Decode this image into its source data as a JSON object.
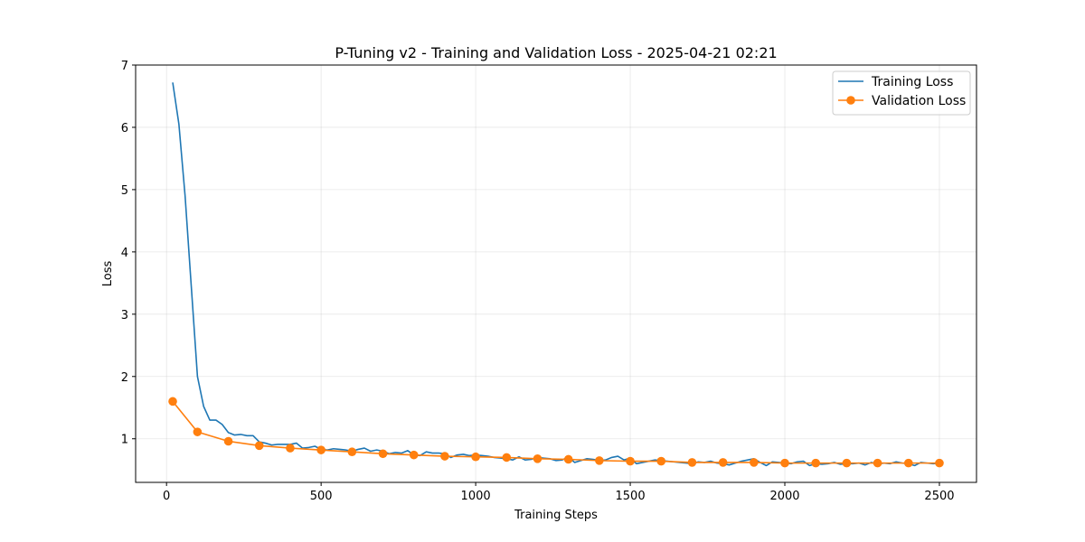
{
  "chart_data": {
    "type": "line",
    "title": "P-Tuning v2 - Training and Validation Loss - 2025-04-21 02:21",
    "xlabel": "Training Steps",
    "ylabel": "Loss",
    "xlim": [
      -100,
      2620
    ],
    "ylim": [
      0.3,
      7.0
    ],
    "x_ticks": [
      0,
      500,
      1000,
      1500,
      2000,
      2500
    ],
    "y_ticks": [
      1,
      2,
      3,
      4,
      5,
      6,
      7
    ],
    "grid": true,
    "legend_position": "top-right",
    "series": [
      {
        "name": "Training Loss",
        "color": "#1f77b4",
        "marker": "none",
        "x": [
          20,
          40,
          60,
          80,
          100,
          120,
          140,
          160,
          180,
          200,
          220,
          240,
          260,
          280,
          300,
          320,
          340,
          360,
          380,
          400,
          420,
          440,
          460,
          480,
          500,
          520,
          540,
          560,
          580,
          600,
          620,
          640,
          660,
          680,
          700,
          720,
          740,
          760,
          780,
          800,
          820,
          840,
          860,
          880,
          900,
          920,
          940,
          960,
          980,
          1000,
          1020,
          1040,
          1060,
          1080,
          1100,
          1120,
          1140,
          1160,
          1180,
          1200,
          1220,
          1240,
          1260,
          1280,
          1300,
          1320,
          1340,
          1360,
          1380,
          1400,
          1420,
          1440,
          1460,
          1480,
          1500,
          1520,
          1540,
          1560,
          1580,
          1600,
          1620,
          1640,
          1660,
          1680,
          1700,
          1720,
          1740,
          1760,
          1780,
          1800,
          1820,
          1840,
          1860,
          1880,
          1900,
          1920,
          1940,
          1960,
          1980,
          2000,
          2020,
          2040,
          2060,
          2080,
          2100,
          2120,
          2140,
          2160,
          2180,
          2200,
          2220,
          2240,
          2260,
          2280,
          2300,
          2320,
          2340,
          2360,
          2380,
          2400,
          2420,
          2440,
          2460,
          2480,
          2500
        ],
        "values": [
          6.72,
          6.05,
          4.9,
          3.45,
          2.0,
          1.52,
          1.3,
          1.3,
          1.23,
          1.1,
          1.06,
          1.07,
          1.05,
          1.05,
          0.95,
          0.93,
          0.9,
          0.91,
          0.91,
          0.91,
          0.93,
          0.85,
          0.86,
          0.88,
          0.83,
          0.82,
          0.84,
          0.83,
          0.82,
          0.8,
          0.83,
          0.85,
          0.8,
          0.82,
          0.8,
          0.76,
          0.78,
          0.77,
          0.81,
          0.74,
          0.73,
          0.79,
          0.77,
          0.77,
          0.76,
          0.7,
          0.74,
          0.75,
          0.73,
          0.74,
          0.73,
          0.72,
          0.7,
          0.69,
          0.68,
          0.66,
          0.71,
          0.66,
          0.67,
          0.7,
          0.69,
          0.68,
          0.65,
          0.66,
          0.71,
          0.62,
          0.65,
          0.68,
          0.67,
          0.65,
          0.66,
          0.7,
          0.72,
          0.66,
          0.69,
          0.6,
          0.62,
          0.64,
          0.66,
          0.65,
          0.64,
          0.63,
          0.62,
          0.61,
          0.6,
          0.63,
          0.62,
          0.64,
          0.61,
          0.6,
          0.58,
          0.61,
          0.64,
          0.66,
          0.68,
          0.62,
          0.57,
          0.63,
          0.62,
          0.61,
          0.6,
          0.63,
          0.64,
          0.57,
          0.6,
          0.59,
          0.6,
          0.62,
          0.59,
          0.6,
          0.6,
          0.61,
          0.58,
          0.62,
          0.59,
          0.61,
          0.6,
          0.63,
          0.61,
          0.6,
          0.57,
          0.62,
          0.61,
          0.6,
          0.61
        ]
      },
      {
        "name": "Validation Loss",
        "color": "#ff7f0e",
        "marker": "circle",
        "x": [
          20,
          100,
          200,
          300,
          400,
          500,
          600,
          700,
          800,
          900,
          1000,
          1100,
          1200,
          1300,
          1400,
          1500,
          1600,
          1700,
          1800,
          1900,
          2000,
          2100,
          2200,
          2300,
          2400,
          2500
        ],
        "values": [
          1.6,
          1.11,
          0.96,
          0.89,
          0.85,
          0.82,
          0.79,
          0.76,
          0.74,
          0.72,
          0.71,
          0.7,
          0.68,
          0.67,
          0.65,
          0.64,
          0.64,
          0.62,
          0.62,
          0.62,
          0.61,
          0.61,
          0.61,
          0.61,
          0.61,
          0.61
        ]
      }
    ]
  }
}
